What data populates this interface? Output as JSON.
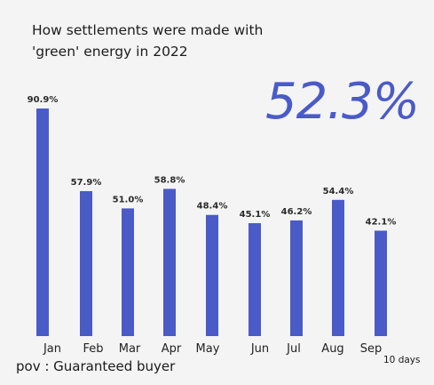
{
  "chart": {
    "title": "How settlements were made with\n'green' energy in 2022",
    "highlight": "52.3%",
    "footnote": "pov : Guaranteed buyer",
    "period": "10 days"
  },
  "colors": {
    "bar": "#4a5bc8",
    "highlight": "#4a5bc8",
    "background": "#f4f4f4",
    "text": "#1a1a1a"
  },
  "chart_data": {
    "type": "bar",
    "title": "How settlements were made with 'green' energy in 2022",
    "categories": [
      "Jan",
      "Feb",
      "Mar",
      "Apr",
      "May",
      "Jun",
      "Jul",
      "Aug",
      "Sep"
    ],
    "values": [
      90.9,
      57.9,
      51.0,
      58.8,
      48.4,
      45.1,
      46.2,
      54.4,
      42.1
    ],
    "data_labels": [
      "90.9%",
      "57.9%",
      "51.0%",
      "58.8%",
      "48.4%",
      "45.1%",
      "46.2%",
      "54.4%",
      "42.1%"
    ],
    "xlabel": "",
    "ylabel": "",
    "ylim": [
      0,
      100
    ],
    "grid": false,
    "legend": "none"
  }
}
